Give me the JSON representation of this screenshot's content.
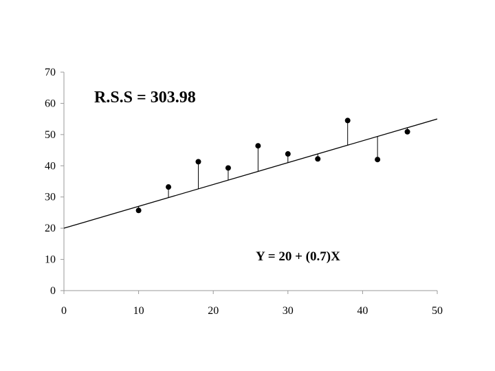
{
  "chart_data": {
    "type": "scatter",
    "title": "",
    "xlabel": "",
    "ylabel": "",
    "xlim": [
      0,
      50
    ],
    "ylim": [
      0,
      70
    ],
    "x_ticks": [
      0,
      10,
      20,
      30,
      40,
      50
    ],
    "y_ticks": [
      0,
      10,
      20,
      30,
      40,
      50,
      60,
      70
    ],
    "grid": false,
    "points": [
      {
        "x": 10,
        "y": 25.7
      },
      {
        "x": 14,
        "y": 33.2
      },
      {
        "x": 18,
        "y": 41.3
      },
      {
        "x": 22,
        "y": 39.3
      },
      {
        "x": 26,
        "y": 46.4
      },
      {
        "x": 30,
        "y": 43.8
      },
      {
        "x": 34,
        "y": 42.2
      },
      {
        "x": 38,
        "y": 54.5
      },
      {
        "x": 42,
        "y": 42.0
      },
      {
        "x": 46,
        "y": 50.9
      }
    ],
    "fit_line": {
      "intercept": 20,
      "slope": 0.7,
      "x_range": [
        0,
        50
      ]
    },
    "residual_lines": true,
    "annotations": {
      "rss": "R.S.S = 303.98",
      "equation": "Y = 20 + (0.7)X"
    }
  }
}
